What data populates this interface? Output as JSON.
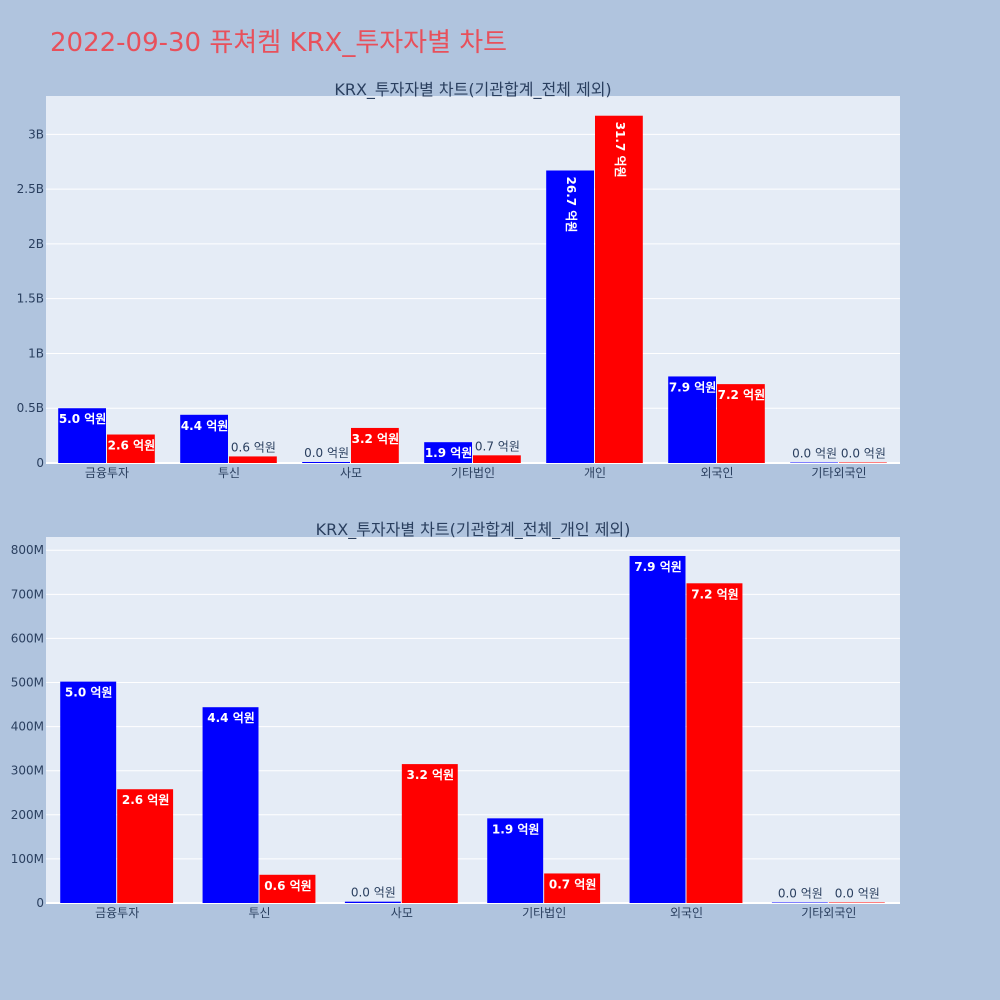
{
  "page": {
    "title": "2022-09-30 퓨쳐켐 KRX_투자자별 차트",
    "title_color": "#e8505b",
    "background": "#b0c4de",
    "plot_background": "#e5ecf6"
  },
  "chart_data": [
    {
      "type": "bar",
      "title": "KRX_투자자별 차트(기관합계_전체 제외)",
      "categories": [
        "금융투자",
        "투신",
        "사모",
        "기타법인",
        "개인",
        "외국인",
        "기타외국인"
      ],
      "ylim": [
        0,
        3350000000
      ],
      "yticks": [
        0,
        500000000,
        1000000000,
        1500000000,
        2000000000,
        2500000000,
        3000000000
      ],
      "ytick_labels": [
        "0",
        "0.5B",
        "1B",
        "1.5B",
        "2B",
        "2.5B",
        "3B"
      ],
      "grid": true,
      "series": [
        {
          "color": "#0000ff",
          "values": [
            500000000,
            440000000,
            3000000,
            190000000,
            2670000000,
            790000000,
            0
          ],
          "labels": [
            "5.0 억원",
            "4.4 억원",
            "0.0 억원",
            "1.9 억원",
            "26.7 억원",
            "7.9 억원",
            "0.0 억원"
          ]
        },
        {
          "color": "#ff0000",
          "values": [
            260000000,
            60000000,
            320000000,
            70000000,
            3170000000,
            720000000,
            0
          ],
          "labels": [
            "2.6 억원",
            "0.6 억원",
            "3.2 억원",
            "0.7 억원",
            "31.7 억원",
            "7.2 억원",
            "0.0 억원"
          ]
        }
      ]
    },
    {
      "type": "bar",
      "title": "KRX_투자자별 차트(기관합계_전체_개인 제외)",
      "categories": [
        "금융투자",
        "투신",
        "사모",
        "기타법인",
        "외국인",
        "기타외국인"
      ],
      "ylim": [
        0,
        830000000
      ],
      "yticks": [
        0,
        100000000,
        200000000,
        300000000,
        400000000,
        500000000,
        600000000,
        700000000,
        800000000
      ],
      "ytick_labels": [
        "0",
        "100M",
        "200M",
        "300M",
        "400M",
        "500M",
        "600M",
        "700M",
        "800M"
      ],
      "grid": true,
      "series": [
        {
          "color": "#0000ff",
          "values": [
            502000000,
            444000000,
            3000000,
            192000000,
            787000000,
            0
          ],
          "labels": [
            "5.0 억원",
            "4.4 억원",
            "0.0 억원",
            "1.9 억원",
            "7.9 억원",
            "0.0 억원"
          ]
        },
        {
          "color": "#ff0000",
          "values": [
            258000000,
            64000000,
            315000000,
            67000000,
            725000000,
            0
          ],
          "labels": [
            "2.6 억원",
            "0.6 억원",
            "3.2 억원",
            "0.7 억원",
            "7.2 억원",
            "0.0 억원"
          ]
        }
      ]
    }
  ]
}
